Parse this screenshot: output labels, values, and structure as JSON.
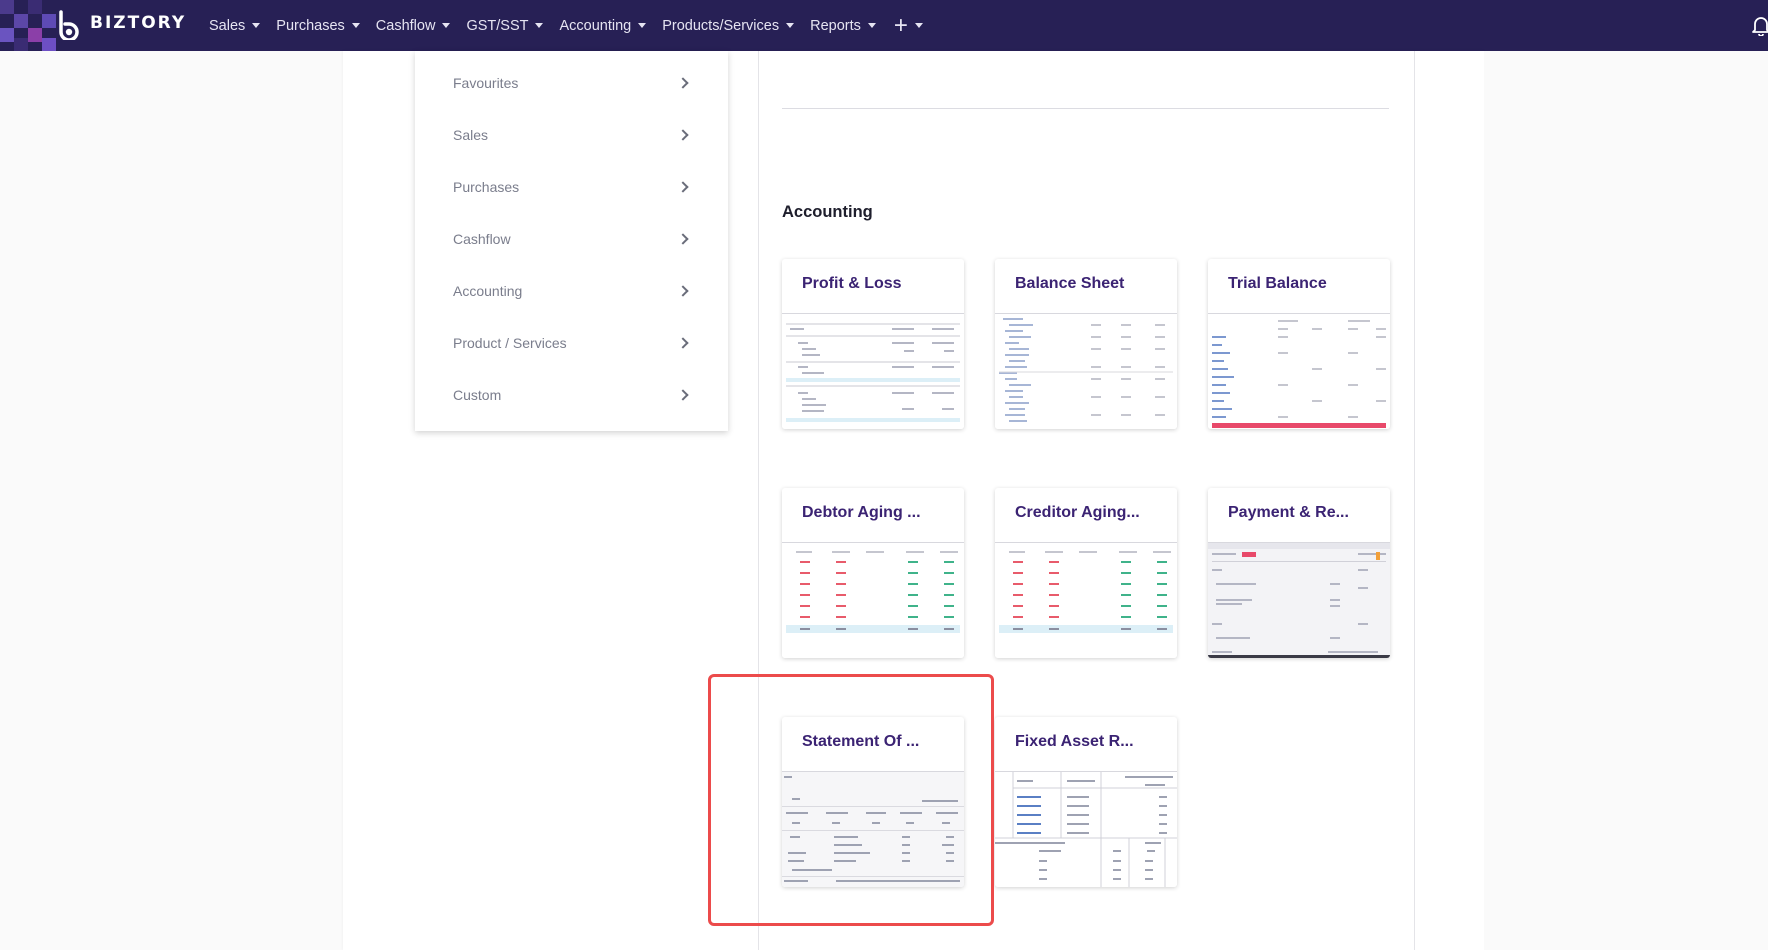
{
  "app": {
    "brand": "BIZTORY"
  },
  "nav": {
    "items": [
      {
        "label": "Sales"
      },
      {
        "label": "Purchases"
      },
      {
        "label": "Cashflow"
      },
      {
        "label": "GST/SST"
      },
      {
        "label": "Accounting"
      },
      {
        "label": "Products/Services"
      },
      {
        "label": "Reports"
      }
    ],
    "plus_icon": "plus-icon",
    "bell_icon": "bell-icon"
  },
  "side_menu": {
    "items": [
      {
        "label": "Favourites"
      },
      {
        "label": "Sales"
      },
      {
        "label": "Purchases"
      },
      {
        "label": "Cashflow"
      },
      {
        "label": "Accounting"
      },
      {
        "label": "Product / Services"
      },
      {
        "label": "Custom"
      }
    ]
  },
  "section": {
    "title": "Accounting"
  },
  "cards": [
    {
      "title": "Profit & Loss"
    },
    {
      "title": "Balance Sheet"
    },
    {
      "title": "Trial Balance"
    },
    {
      "title": "Debtor Aging ..."
    },
    {
      "title": "Creditor Aging..."
    },
    {
      "title": "Payment & Re..."
    },
    {
      "title": "Statement Of ..."
    },
    {
      "title": "Fixed Asset R..."
    }
  ],
  "colors": {
    "nav_bg": "#272055",
    "card_title": "#3b2373",
    "highlight": "#ec4b4b"
  }
}
